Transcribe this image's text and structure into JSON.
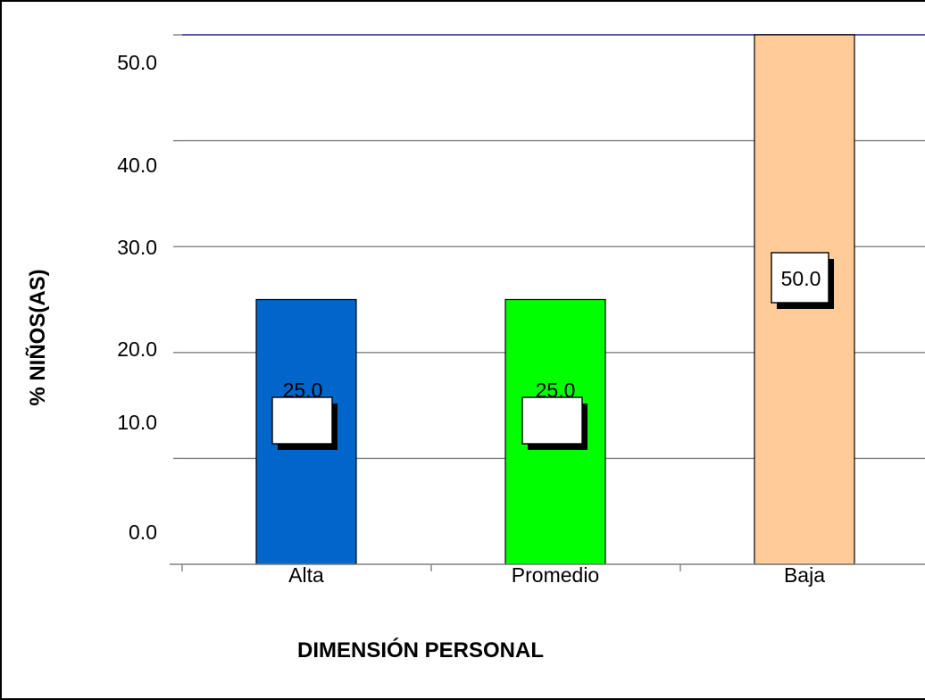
{
  "chart_data": {
    "type": "bar",
    "categories": [
      "Alta",
      "Promedio",
      "Baja"
    ],
    "values": [
      25.0,
      25.0,
      50.0
    ],
    "data_labels": [
      "25.0",
      "25.0",
      "50.0"
    ],
    "colors": [
      "#0066cc",
      "#00ff00",
      "#ffcc99"
    ],
    "title": "",
    "xlabel": "DIMENSIÓN PERSONAL",
    "ylabel": "% NIÑOS(AS)",
    "ylim": [
      0,
      50
    ],
    "yticks": [
      "50.0",
      "40.0",
      "30.0",
      "20.0",
      "10.0",
      "0.0"
    ],
    "grid": true,
    "legend": "none"
  }
}
